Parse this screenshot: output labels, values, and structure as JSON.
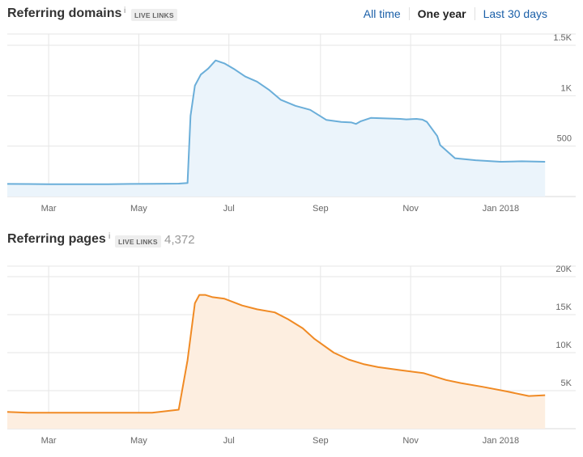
{
  "referring_domains": {
    "title": "Referring domains",
    "info_glyph": "i",
    "badge": "LIVE LINKS"
  },
  "time_tabs": {
    "all_time": "All time",
    "one_year": "One year",
    "last_30_days": "Last 30 days",
    "active": "one_year"
  },
  "referring_pages": {
    "title": "Referring pages",
    "info_glyph": "i",
    "badge": "LIVE LINKS",
    "total": "4,372"
  },
  "colors": {
    "domains_line": "#6aaed9",
    "domains_fill": "#ebf4fb",
    "pages_line": "#f08a24",
    "pages_fill": "#fdeee0",
    "grid": "#e6e6e6",
    "link": "#1a5fa8"
  },
  "chart_data": [
    {
      "type": "area",
      "title": "Referring domains",
      "x_tick_labels": [
        "Mar",
        "May",
        "Jul",
        "Sep",
        "Nov",
        "Jan 2018"
      ],
      "y_tick_labels": [
        "500",
        "1K",
        "1.5K"
      ],
      "ylim": [
        0,
        1500
      ],
      "grid": true,
      "series": [
        {
          "x": [
            "2017-02-01",
            "2017-02-15",
            "2017-03-01",
            "2017-03-20",
            "2017-04-10",
            "2017-04-25",
            "2017-05-10",
            "2017-05-28",
            "2017-06-03",
            "2017-06-05",
            "2017-06-08",
            "2017-06-12",
            "2017-06-17",
            "2017-06-22",
            "2017-06-28",
            "2017-07-05",
            "2017-07-12",
            "2017-07-20",
            "2017-07-28",
            "2017-08-05",
            "2017-08-15",
            "2017-08-25",
            "2017-09-05",
            "2017-09-15",
            "2017-09-22",
            "2017-09-25",
            "2017-09-28",
            "2017-10-05",
            "2017-10-15",
            "2017-10-25",
            "2017-10-29",
            "2017-11-05",
            "2017-11-09",
            "2017-11-12",
            "2017-11-16",
            "2017-11-19",
            "2017-11-21",
            "2017-12-01",
            "2017-12-15",
            "2018-01-01",
            "2018-01-15",
            "2018-01-31"
          ],
          "values": [
            125,
            124,
            122,
            122,
            123,
            125,
            126,
            128,
            134,
            800,
            1100,
            1210,
            1270,
            1350,
            1320,
            1260,
            1190,
            1140,
            1060,
            960,
            900,
            860,
            760,
            740,
            735,
            720,
            745,
            780,
            775,
            770,
            765,
            770,
            763,
            740,
            660,
            600,
            510,
            380,
            360,
            345,
            350,
            345
          ]
        }
      ]
    },
    {
      "type": "area",
      "title": "Referring pages",
      "x_tick_labels": [
        "Mar",
        "May",
        "Jul",
        "Sep",
        "Nov",
        "Jan 2018"
      ],
      "y_tick_labels": [
        "5K",
        "10K",
        "15K",
        "20K"
      ],
      "ylim": [
        0,
        20000
      ],
      "grid": true,
      "series": [
        {
          "x": [
            "2017-02-01",
            "2017-02-15",
            "2017-03-01",
            "2017-03-20",
            "2017-04-10",
            "2017-04-25",
            "2017-05-10",
            "2017-05-28",
            "2017-06-03",
            "2017-06-08",
            "2017-06-11",
            "2017-06-15",
            "2017-06-20",
            "2017-06-28",
            "2017-07-10",
            "2017-07-20",
            "2017-08-01",
            "2017-08-10",
            "2017-08-20",
            "2017-08-28",
            "2017-09-10",
            "2017-09-20",
            "2017-09-30",
            "2017-10-10",
            "2017-10-25",
            "2017-11-10",
            "2017-11-25",
            "2017-12-05",
            "2017-12-20",
            "2018-01-05",
            "2018-01-20",
            "2018-01-31"
          ],
          "values": [
            2200,
            2100,
            2100,
            2100,
            2100,
            2100,
            2100,
            2500,
            9000,
            16500,
            17600,
            17600,
            17300,
            17100,
            16200,
            15700,
            15300,
            14400,
            13200,
            11800,
            10000,
            9100,
            8500,
            8100,
            7700,
            7300,
            6400,
            6000,
            5500,
            4900,
            4300,
            4400
          ]
        }
      ]
    }
  ]
}
